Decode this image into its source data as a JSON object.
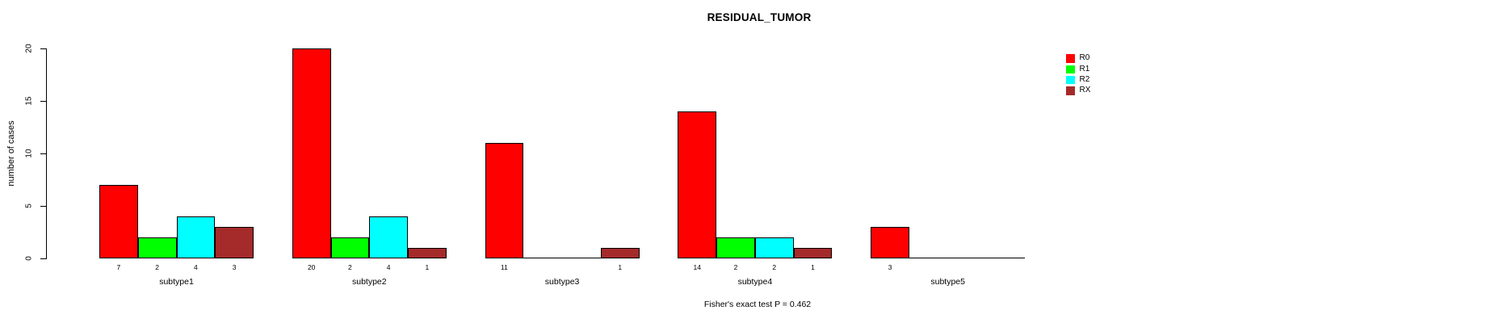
{
  "chart_data": {
    "type": "bar",
    "title": "RESIDUAL_TUMOR",
    "ylabel": "number of cases",
    "xlabel": "",
    "footnote": "Fisher's exact test P = 0.462",
    "categories": [
      "subtype1",
      "subtype2",
      "subtype3",
      "subtype4",
      "subtype5"
    ],
    "series": [
      {
        "name": "R0",
        "color": "#FF0000",
        "values": [
          7,
          20,
          11,
          14,
          3
        ]
      },
      {
        "name": "R1",
        "color": "#00FF00",
        "values": [
          2,
          2,
          0,
          2,
          0
        ]
      },
      {
        "name": "R2",
        "color": "#00FFFF",
        "values": [
          4,
          4,
          0,
          2,
          0
        ]
      },
      {
        "name": "RX",
        "color": "#A52A2A",
        "values": [
          3,
          1,
          1,
          1,
          0
        ]
      }
    ],
    "ylim": [
      0,
      20
    ],
    "yticks": [
      0,
      5,
      10,
      15,
      20
    ],
    "bar_value_labels": [
      [
        "7",
        "2",
        "4",
        "3"
      ],
      [
        "20",
        "2",
        "4",
        "1"
      ],
      [
        "11",
        "",
        "",
        "1"
      ],
      [
        "14",
        "2",
        "2",
        "1"
      ],
      [
        "3",
        "",
        "",
        ""
      ]
    ],
    "legend_position": "top-right",
    "legend_entries": [
      "R0",
      "R1",
      "R2",
      "RX"
    ],
    "grid": false,
    "axis_color": "#000000",
    "bar_border_color": "#000000"
  }
}
